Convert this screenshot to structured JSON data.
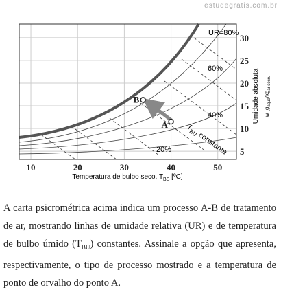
{
  "watermark": "estudegratis.com.br",
  "chart": {
    "xlim": [
      7.5,
      54
    ],
    "ylim": [
      3.2,
      33
    ],
    "xticks": [
      10,
      20,
      30,
      40,
      50
    ],
    "yticks": [
      5,
      10,
      15,
      20,
      25,
      30
    ],
    "x_label": {
      "main": "Temperatura de bulbo seco, T",
      "sub": "BS",
      "unit": " [ºC]"
    },
    "y_label": {
      "line1": "Umidade absoluta",
      "w": "w [g",
      "sub1": "água",
      "mid": "/kg",
      "sub2": "ar seco",
      "end": "]"
    },
    "rh_labels": [
      "UR=80%",
      "60%",
      "40%",
      "20%"
    ],
    "wet_bulb_label": {
      "main": "T",
      "sub": "BU",
      "rest": " constante"
    },
    "points": [
      {
        "label": "A",
        "x": 40,
        "y": 11.5
      },
      {
        "label": "B",
        "x": 34,
        "y": 16.3
      }
    ]
  },
  "paragraph": {
    "part1": "A carta psicrométrica acima indica um processo A-B de tratamento de ar, mostrando linhas de umidade relativa (UR) e de temperatura de bulbo úmido (T",
    "sub": "BU",
    "part2": ") constantes. Assinale a opção que apresenta, respectivamente, o tipo de processo mostrado e a temperatura de ponto de orvalho do ponto A."
  }
}
